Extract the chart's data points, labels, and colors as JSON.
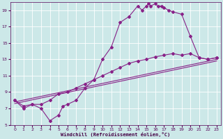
{
  "xlabel": "Windchill (Refroidissement éolien,°C)",
  "bg_color": "#cce8e8",
  "line_color": "#882288",
  "xlim": [
    -0.5,
    23.5
  ],
  "ylim": [
    5,
    20
  ],
  "yticks": [
    5,
    7,
    9,
    11,
    13,
    15,
    17,
    19
  ],
  "xticks": [
    0,
    1,
    2,
    3,
    4,
    5,
    6,
    7,
    8,
    9,
    10,
    11,
    12,
    13,
    14,
    15,
    16,
    17,
    18,
    19,
    20,
    21,
    22,
    23
  ],
  "line1_x": [
    0,
    1,
    2,
    3,
    4,
    5,
    5.5,
    6,
    7,
    8,
    9,
    10,
    11,
    12,
    13,
    14,
    14.5,
    15,
    15.2,
    15.5,
    16,
    16.3,
    16.7,
    17,
    17.5,
    18,
    19,
    20,
    21,
    22,
    23
  ],
  "line1_y": [
    8,
    7,
    7.5,
    7,
    5.5,
    6.2,
    7.3,
    7.5,
    8,
    9.5,
    10.5,
    13,
    14.5,
    17.5,
    18.2,
    19.5,
    19.0,
    19.5,
    19.8,
    19.5,
    19.8,
    19.5,
    19.5,
    19.3,
    19.0,
    18.8,
    18.5,
    15.8,
    13.2,
    13.0,
    13.2
  ],
  "line2_x": [
    0,
    1,
    2,
    3,
    4,
    5,
    6,
    7,
    8,
    9,
    10,
    11,
    12,
    13,
    14,
    15,
    16,
    17,
    18,
    19,
    20,
    21,
    22,
    23
  ],
  "line2_y": [
    8,
    7.3,
    7.5,
    7.5,
    8.0,
    8.8,
    9.0,
    9.5,
    10.0,
    10.5,
    11.0,
    11.5,
    12.0,
    12.5,
    12.8,
    13.0,
    13.3,
    13.5,
    13.7,
    13.5,
    13.7,
    13.2,
    13.0,
    13.2
  ],
  "line3_x": [
    0,
    23
  ],
  "line3_y": [
    7.8,
    13.0
  ],
  "line4_x": [
    0,
    23
  ],
  "line4_y": [
    7.6,
    12.8
  ],
  "marker": "D",
  "markersize": 2.0
}
